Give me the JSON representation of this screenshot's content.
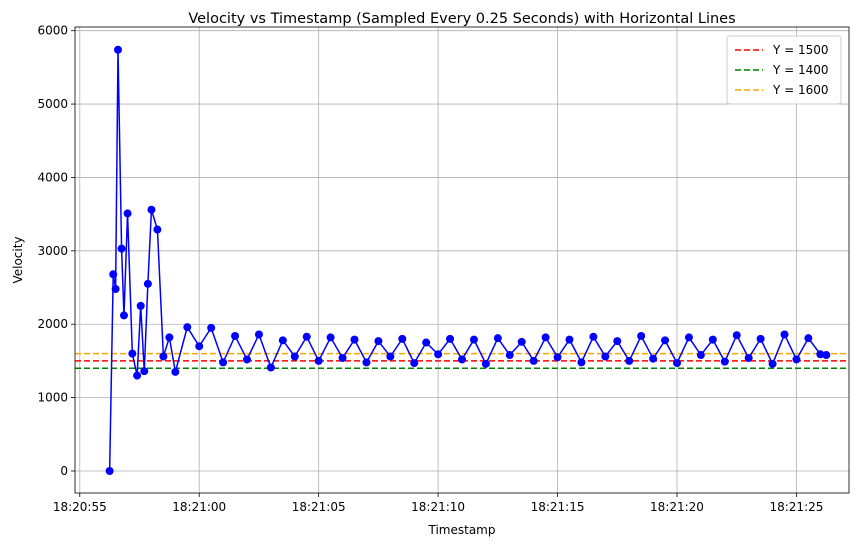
{
  "chart_data": {
    "type": "line",
    "title": "Velocity vs Timestamp (Sampled Every 0.25 Seconds) with Horizontal Lines",
    "xlabel": "Timestamp",
    "ylabel": "Velocity",
    "x_ticks": [
      "18:20:55",
      "18:21:00",
      "18:21:05",
      "18:21:10",
      "18:21:15",
      "18:21:20",
      "18:21:25"
    ],
    "y_ticks": [
      "0",
      "1000",
      "2000",
      "3000",
      "4000",
      "5000",
      "6000"
    ],
    "xlim": [
      "18:20:54.8",
      "18:21:27.2"
    ],
    "ylim": [
      -300,
      6050
    ],
    "grid": true,
    "legend_position": "top-right",
    "series": [
      {
        "name": "Velocity",
        "color": "#0000ff",
        "marker": "circle",
        "x": [
          "18:20:56.25",
          "18:20:56.40",
          "18:20:56.50",
          "18:20:56.60",
          "18:20:56.75",
          "18:20:56.85",
          "18:20:57.00",
          "18:20:57.20",
          "18:20:57.40",
          "18:20:57.55",
          "18:20:57.70",
          "18:20:57.85",
          "18:20:58.00",
          "18:20:58.25",
          "18:20:58.50",
          "18:20:58.75",
          "18:20:59.00",
          "18:20:59.50",
          "18:21:00.00",
          "18:21:00.50",
          "18:21:01.00",
          "18:21:01.50",
          "18:21:02.00",
          "18:21:02.50",
          "18:21:03.00",
          "18:21:03.50",
          "18:21:04.00",
          "18:21:04.50",
          "18:21:05.00",
          "18:21:05.50",
          "18:21:06.00",
          "18:21:06.50",
          "18:21:07.00",
          "18:21:07.50",
          "18:21:08.00",
          "18:21:08.50",
          "18:21:09.00",
          "18:21:09.50",
          "18:21:10.00",
          "18:21:10.50",
          "18:21:11.00",
          "18:21:11.50",
          "18:21:12.00",
          "18:21:12.50",
          "18:21:13.00",
          "18:21:13.50",
          "18:21:14.00",
          "18:21:14.50",
          "18:21:15.00",
          "18:21:15.50",
          "18:21:16.00",
          "18:21:16.50",
          "18:21:17.00",
          "18:21:17.50",
          "18:21:18.00",
          "18:21:18.50",
          "18:21:19.00",
          "18:21:19.50",
          "18:21:20.00",
          "18:21:20.50",
          "18:21:21.00",
          "18:21:21.50",
          "18:21:22.00",
          "18:21:22.50",
          "18:21:23.00",
          "18:21:23.50",
          "18:21:24.00",
          "18:21:24.50",
          "18:21:25.00",
          "18:21:25.50",
          "18:21:26.00",
          "18:21:26.25"
        ],
        "y": [
          0,
          2680,
          2480,
          5740,
          3030,
          2120,
          3510,
          1600,
          1300,
          2250,
          1360,
          2550,
          3560,
          3290,
          1560,
          1820,
          1350,
          1960,
          1700,
          1950,
          1480,
          1840,
          1520,
          1860,
          1410,
          1780,
          1560,
          1830,
          1500,
          1820,
          1540,
          1790,
          1480,
          1770,
          1560,
          1800,
          1470,
          1750,
          1590,
          1800,
          1520,
          1790,
          1460,
          1810,
          1580,
          1760,
          1500,
          1820,
          1550,
          1790,
          1480,
          1830,
          1560,
          1770,
          1500,
          1840,
          1530,
          1780,
          1470,
          1820,
          1580,
          1790,
          1490,
          1850,
          1540,
          1800,
          1460,
          1860,
          1520,
          1810,
          1590,
          1580
        ]
      }
    ],
    "hlines": [
      {
        "name": "Y = 1500",
        "y": 1500,
        "color": "#ff0000"
      },
      {
        "name": "Y = 1400",
        "y": 1400,
        "color": "#008000"
      },
      {
        "name": "Y = 1600",
        "y": 1600,
        "color": "#ffa500"
      }
    ]
  }
}
